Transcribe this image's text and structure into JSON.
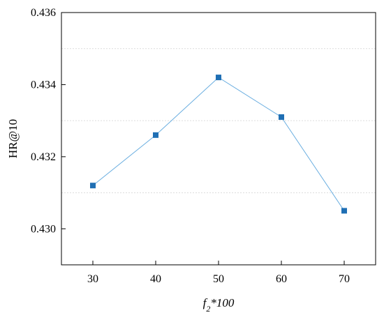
{
  "chart_data": {
    "type": "line",
    "title": "",
    "xlabel": {
      "main": "f",
      "subscript": "2",
      "suffix": "*100"
    },
    "ylabel": "HR@10",
    "x": [
      30,
      40,
      50,
      60,
      70
    ],
    "xlim": [
      25,
      75
    ],
    "ylim": [
      0.429,
      0.436
    ],
    "xticks": [
      "30",
      "40",
      "50",
      "60",
      "70"
    ],
    "yticks": [
      {
        "value": 0.43,
        "label": "0.430"
      },
      {
        "value": 0.432,
        "label": "0.432"
      },
      {
        "value": 0.434,
        "label": "0.434"
      },
      {
        "value": 0.436,
        "label": "0.436"
      }
    ],
    "grid": {
      "y_values": [
        0.431,
        0.433,
        0.435
      ]
    },
    "series": [
      {
        "values": [
          0.4312,
          0.4326,
          0.4342,
          0.4331,
          0.4305
        ],
        "color": "#1f6fb4",
        "line_color": "#6aaee0",
        "marker": "square"
      }
    ]
  }
}
